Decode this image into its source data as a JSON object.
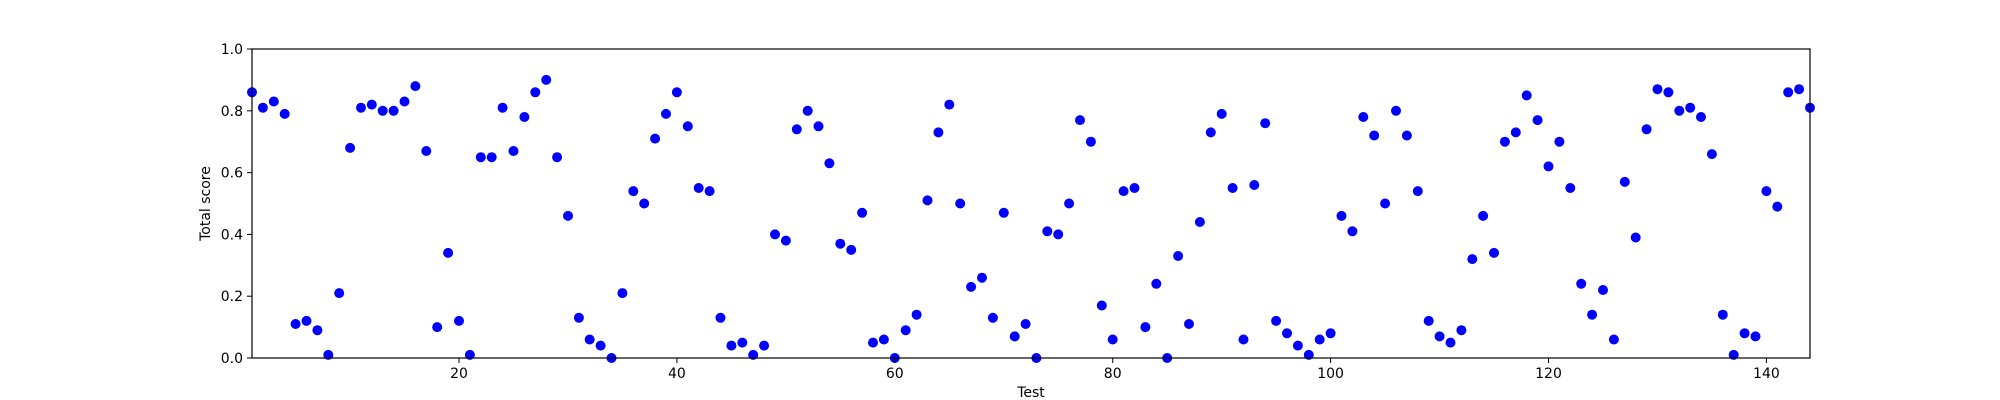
{
  "chart_data": {
    "type": "scatter",
    "xlabel": "Test",
    "ylabel": "Total score",
    "xlim": [
      1,
      144
    ],
    "ylim": [
      0,
      1
    ],
    "xticks": [
      20,
      40,
      60,
      80,
      100,
      120,
      140
    ],
    "yticks": [
      0.0,
      0.2,
      0.4,
      0.6,
      0.8,
      1.0
    ],
    "ytick_labels": [
      "0.0",
      "0.2",
      "0.4",
      "0.6",
      "0.8",
      "1.0"
    ],
    "grid": false,
    "marker_color": "#0000ff",
    "series": [
      {
        "x": [
          1,
          2,
          3,
          4,
          5,
          6,
          7,
          8,
          9,
          10,
          11,
          12,
          13,
          14,
          15,
          16,
          17,
          18,
          19,
          20,
          21,
          22,
          23,
          24,
          25,
          26,
          27,
          28,
          29,
          30,
          31,
          32,
          33,
          34,
          35,
          36,
          37,
          38,
          39,
          40,
          41,
          42,
          43,
          44,
          45,
          46,
          47,
          48,
          49,
          50,
          51,
          52,
          53,
          54,
          55,
          56,
          57,
          58,
          59,
          60,
          61,
          62,
          63,
          64,
          65,
          66,
          67,
          68,
          69,
          70,
          71,
          72,
          73,
          74,
          75,
          76,
          77,
          78,
          79,
          80,
          81,
          82,
          83,
          84,
          85,
          86,
          87,
          88,
          89,
          90,
          91,
          92,
          93,
          94,
          95,
          96,
          97,
          98,
          99,
          100,
          101,
          102,
          103,
          104,
          105,
          106,
          107,
          108,
          109,
          110,
          111,
          112,
          113,
          114,
          115,
          116,
          117,
          118,
          119,
          120,
          121,
          122,
          123,
          124,
          125,
          126,
          127,
          128,
          129,
          130,
          131,
          132,
          133,
          134,
          135,
          136,
          137,
          138,
          139,
          140,
          141,
          142,
          143,
          144
        ],
        "y": [
          0.86,
          0.81,
          0.83,
          0.79,
          0.11,
          0.12,
          0.09,
          0.01,
          0.21,
          0.68,
          0.81,
          0.82,
          0.8,
          0.8,
          0.83,
          0.88,
          0.67,
          0.1,
          0.34,
          0.12,
          0.01,
          0.65,
          0.65,
          0.81,
          0.67,
          0.78,
          0.86,
          0.9,
          0.65,
          0.46,
          0.13,
          0.06,
          0.04,
          0.0,
          0.21,
          0.54,
          0.5,
          0.71,
          0.79,
          0.86,
          0.75,
          0.55,
          0.54,
          0.13,
          0.04,
          0.05,
          0.01,
          0.04,
          0.4,
          0.38,
          0.74,
          0.8,
          0.75,
          0.63,
          0.37,
          0.35,
          0.47,
          0.05,
          0.06,
          0.0,
          0.09,
          0.14,
          0.51,
          0.73,
          0.82,
          0.5,
          0.23,
          0.26,
          0.13,
          0.47,
          0.07,
          0.11,
          0.0,
          0.41,
          0.4,
          0.5,
          0.77,
          0.7,
          0.17,
          0.06,
          0.54,
          0.55,
          0.1,
          0.24,
          0.0,
          0.33,
          0.11,
          0.44,
          0.73,
          0.79,
          0.55,
          0.06,
          0.56,
          0.76,
          0.12,
          0.08,
          0.04,
          0.01,
          0.06,
          0.08,
          0.46,
          0.41,
          0.78,
          0.72,
          0.5,
          0.8,
          0.72,
          0.54,
          0.12,
          0.07,
          0.05,
          0.09,
          0.32,
          0.46,
          0.34,
          0.7,
          0.73,
          0.85,
          0.77,
          0.62,
          0.7,
          0.55,
          0.24,
          0.14,
          0.22,
          0.06,
          0.57,
          0.39,
          0.74,
          0.87,
          0.86,
          0.8,
          0.81,
          0.78,
          0.66,
          0.14,
          0.01,
          0.08,
          0.07,
          0.54,
          0.49,
          0.86,
          0.87,
          0.81
        ]
      }
    ]
  }
}
